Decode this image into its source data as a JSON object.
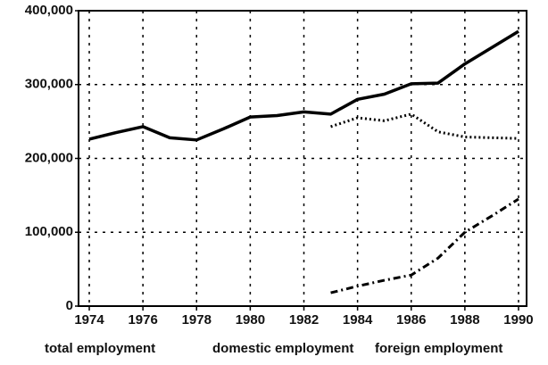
{
  "chart_data": {
    "type": "line",
    "x": [
      1974,
      1975,
      1976,
      1977,
      1978,
      1979,
      1980,
      1981,
      1982,
      1983,
      1984,
      1985,
      1986,
      1987,
      1988,
      1989,
      1990
    ],
    "series": [
      {
        "name": "total employment",
        "color": "#000000",
        "style": "solid",
        "values": [
          226000,
          235000,
          243000,
          228000,
          225000,
          240000,
          256000,
          258000,
          263000,
          260000,
          280000,
          287000,
          301000,
          302000,
          328000,
          350000,
          372000
        ]
      },
      {
        "name": "domestic employment",
        "color": "#000000",
        "style": "dotted",
        "values": [
          null,
          null,
          null,
          null,
          null,
          null,
          null,
          null,
          null,
          243000,
          255000,
          251000,
          260000,
          236000,
          229000,
          228000,
          227000
        ]
      },
      {
        "name": "foreign employment",
        "color": "#000000",
        "style": "dashdot",
        "values": [
          null,
          null,
          null,
          null,
          null,
          null,
          null,
          null,
          null,
          18000,
          27000,
          35000,
          42000,
          65000,
          100000,
          122000,
          145000
        ]
      }
    ],
    "xlim": [
      1973.6,
      1990.3
    ],
    "xticks": [
      1974,
      1976,
      1978,
      1980,
      1982,
      1984,
      1986,
      1988,
      1990
    ],
    "ylim": [
      0,
      400000
    ],
    "yticks": [
      0,
      {
        "value": 100000,
        "label": "100,000"
      },
      {
        "value": 200000,
        "label": "200,000"
      },
      {
        "value": 300000,
        "label": "300,000"
      },
      {
        "value": 400000,
        "label": "400,000"
      }
    ],
    "grid": true
  }
}
